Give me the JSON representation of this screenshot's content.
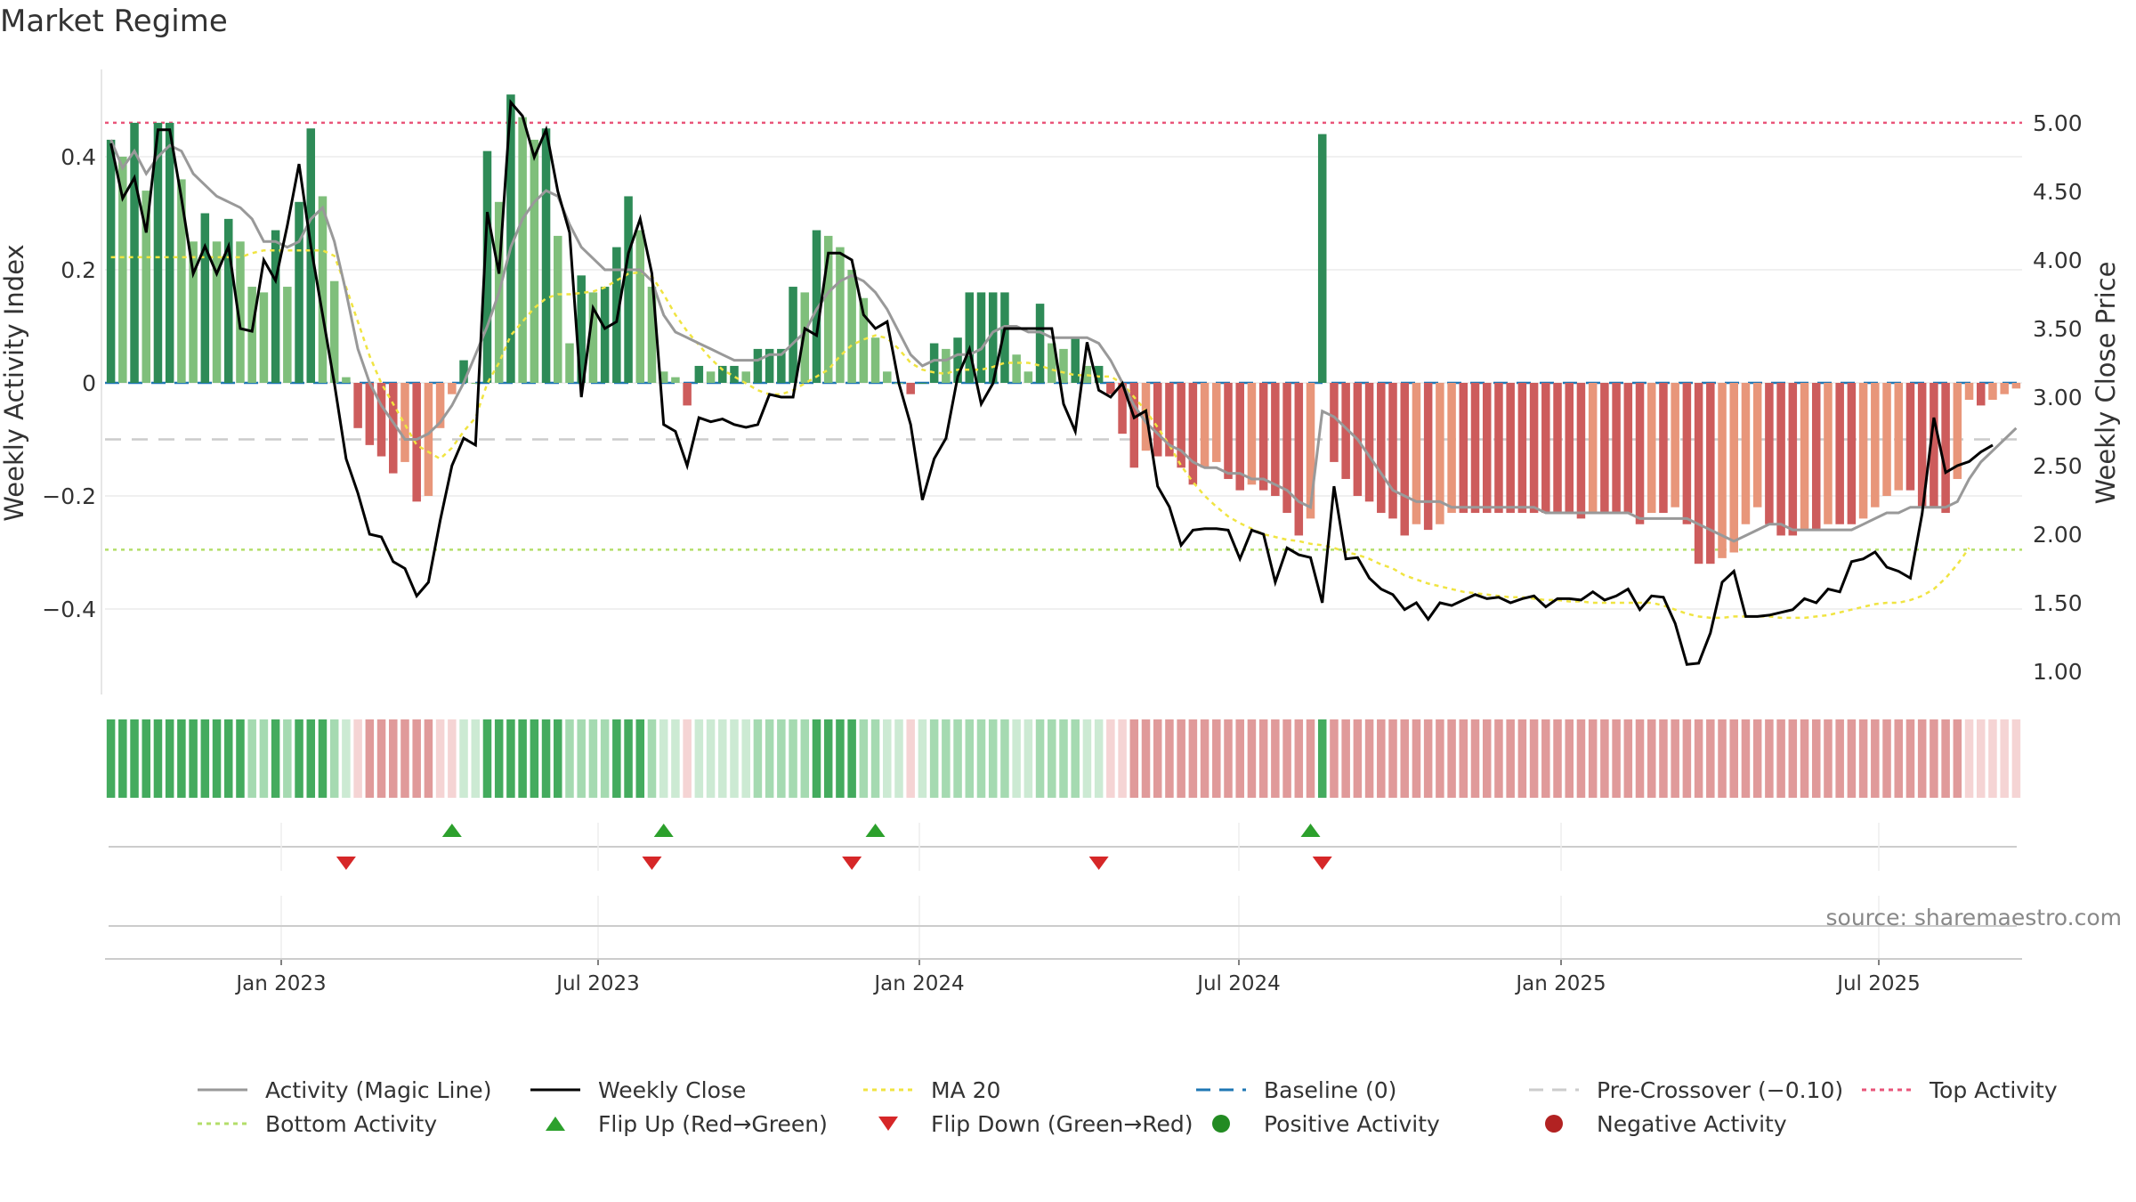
{
  "title": "Market Regime",
  "source": "source: sharemaestro.com",
  "chart_data": {
    "type": "bar",
    "ylabel_left": "Weekly Activity Index",
    "ylabel_right": "Weekly Close Price",
    "y_left_lim": [
      -0.55,
      0.55
    ],
    "y_right_lim": [
      0.85,
      5.35
    ],
    "y_left_ticks": [
      {
        "v": 0.4,
        "label": "0.4"
      },
      {
        "v": 0.2,
        "label": "0.2"
      },
      {
        "v": 0,
        "label": "0"
      },
      {
        "v": -0.2,
        "label": "−0.2"
      },
      {
        "v": -0.4,
        "label": "−0.4"
      }
    ],
    "y_right_ticks": [
      "1.00",
      "1.50",
      "2.00",
      "2.50",
      "3.00",
      "3.50",
      "4.00",
      "4.50",
      "5.00"
    ],
    "x_ticks": [
      "Jan 2023",
      "Jul 2023",
      "Jan 2024",
      "Jul 2024",
      "Jan 2025",
      "Jul 2025"
    ],
    "reference_lines": {
      "top_activity": 0.46,
      "bottom_activity": -0.295,
      "pre_crossover": -0.1,
      "baseline": 0
    },
    "activity_index": [
      0.43,
      0.4,
      0.46,
      0.34,
      0.46,
      0.46,
      0.36,
      0.25,
      0.3,
      0.25,
      0.29,
      0.25,
      0.17,
      0.16,
      0.27,
      0.17,
      0.32,
      0.45,
      0.33,
      0.18,
      0.01,
      -0.08,
      -0.11,
      -0.13,
      -0.16,
      -0.14,
      -0.21,
      -0.2,
      -0.08,
      -0.02,
      0.04,
      0.0,
      0.41,
      0.32,
      0.51,
      0.47,
      0.43,
      0.45,
      0.26,
      0.07,
      0.19,
      0.16,
      0.17,
      0.24,
      0.33,
      0.27,
      0.17,
      0.02,
      0.01,
      -0.04,
      0.03,
      0.02,
      0.03,
      0.03,
      0.02,
      0.06,
      0.06,
      0.06,
      0.17,
      0.16,
      0.27,
      0.26,
      0.24,
      0.2,
      0.15,
      0.08,
      0.02,
      0.0,
      -0.02,
      0.0,
      0.07,
      0.06,
      0.08,
      0.16,
      0.16,
      0.16,
      0.16,
      0.05,
      0.02,
      0.14,
      0.07,
      0.06,
      0.08,
      0.03,
      0.03,
      -0.02,
      -0.09,
      -0.15,
      -0.12,
      -0.13,
      -0.13,
      -0.15,
      -0.18,
      -0.15,
      -0.14,
      -0.17,
      -0.19,
      -0.18,
      -0.19,
      -0.2,
      -0.23,
      -0.27,
      -0.24,
      0.44,
      -0.14,
      -0.17,
      -0.2,
      -0.21,
      -0.23,
      -0.24,
      -0.27,
      -0.25,
      -0.26,
      -0.25,
      -0.23,
      -0.23,
      -0.23,
      -0.23,
      -0.23,
      -0.23,
      -0.23,
      -0.23,
      -0.23,
      -0.23,
      -0.23,
      -0.24,
      -0.23,
      -0.23,
      -0.23,
      -0.23,
      -0.25,
      -0.23,
      -0.23,
      -0.22,
      -0.25,
      -0.32,
      -0.32,
      -0.31,
      -0.3,
      -0.25,
      -0.22,
      -0.25,
      -0.27,
      -0.27,
      -0.26,
      -0.26,
      -0.25,
      -0.25,
      -0.25,
      -0.24,
      -0.22,
      -0.2,
      -0.19,
      -0.19,
      -0.22,
      -0.22,
      -0.23,
      -0.17,
      -0.03,
      -0.04,
      -0.03,
      -0.02,
      -0.01
    ],
    "weekly_close": [
      4.85,
      4.45,
      4.6,
      4.2,
      4.95,
      4.95,
      4.45,
      3.9,
      4.1,
      3.9,
      4.1,
      3.5,
      3.48,
      4.0,
      3.85,
      4.25,
      4.7,
      4.1,
      3.6,
      3.1,
      2.55,
      2.3,
      2.0,
      1.98,
      1.8,
      1.75,
      1.55,
      1.65,
      2.1,
      2.5,
      2.7,
      2.65,
      4.35,
      3.9,
      5.15,
      5.05,
      4.75,
      4.95,
      4.5,
      4.2,
      3.0,
      3.65,
      3.5,
      3.55,
      4.05,
      4.3,
      3.9,
      2.8,
      2.75,
      2.5,
      2.85,
      2.82,
      2.84,
      2.8,
      2.78,
      2.8,
      3.02,
      3.0,
      3.0,
      3.5,
      3.45,
      4.05,
      4.05,
      4.0,
      3.6,
      3.5,
      3.55,
      3.1,
      2.8,
      2.25,
      2.55,
      2.7,
      3.15,
      3.35,
      2.95,
      3.1,
      3.5,
      3.5,
      3.5,
      3.5,
      3.5,
      2.95,
      2.75,
      3.4,
      3.05,
      3.0,
      3.1,
      2.85,
      2.9,
      2.35,
      2.2,
      1.92,
      2.03,
      2.04,
      2.04,
      2.03,
      1.82,
      2.03,
      2.0,
      1.65,
      1.9,
      1.85,
      1.83,
      1.5,
      2.35,
      1.82,
      1.83,
      1.68,
      1.6,
      1.56,
      1.45,
      1.5,
      1.38,
      1.5,
      1.48,
      1.52,
      1.56,
      1.53,
      1.54,
      1.5,
      1.53,
      1.55,
      1.47,
      1.53,
      1.53,
      1.52,
      1.58,
      1.52,
      1.55,
      1.6,
      1.45,
      1.55,
      1.54,
      1.35,
      1.05,
      1.06,
      1.28,
      1.65,
      1.73,
      1.4,
      1.4,
      1.41,
      1.43,
      1.45,
      1.53,
      1.5,
      1.6,
      1.58,
      1.8,
      1.82,
      1.87,
      1.76,
      1.73,
      1.68,
      2.15,
      2.85,
      2.45,
      2.5,
      2.53,
      2.6,
      2.65
    ],
    "activity_magic_line": [
      0.43,
      0.38,
      0.41,
      0.37,
      0.4,
      0.42,
      0.41,
      0.37,
      0.35,
      0.33,
      0.32,
      0.31,
      0.29,
      0.25,
      0.25,
      0.24,
      0.25,
      0.29,
      0.31,
      0.25,
      0.16,
      0.06,
      0.0,
      -0.04,
      -0.07,
      -0.1,
      -0.1,
      -0.09,
      -0.07,
      -0.04,
      0.0,
      0.05,
      0.1,
      0.16,
      0.24,
      0.29,
      0.32,
      0.34,
      0.33,
      0.28,
      0.24,
      0.22,
      0.2,
      0.2,
      0.2,
      0.2,
      0.18,
      0.12,
      0.09,
      0.08,
      0.07,
      0.06,
      0.05,
      0.04,
      0.04,
      0.04,
      0.05,
      0.05,
      0.07,
      0.09,
      0.13,
      0.16,
      0.18,
      0.19,
      0.18,
      0.16,
      0.13,
      0.09,
      0.05,
      0.03,
      0.04,
      0.04,
      0.05,
      0.05,
      0.06,
      0.09,
      0.1,
      0.1,
      0.09,
      0.09,
      0.08,
      0.08,
      0.08,
      0.08,
      0.07,
      0.04,
      0.0,
      -0.04,
      -0.07,
      -0.09,
      -0.11,
      -0.12,
      -0.14,
      -0.15,
      -0.15,
      -0.16,
      -0.16,
      -0.17,
      -0.17,
      -0.18,
      -0.19,
      -0.21,
      -0.22,
      -0.05,
      -0.06,
      -0.08,
      -0.1,
      -0.13,
      -0.16,
      -0.19,
      -0.2,
      -0.21,
      -0.21,
      -0.21,
      -0.22,
      -0.22,
      -0.22,
      -0.22,
      -0.22,
      -0.22,
      -0.22,
      -0.22,
      -0.23,
      -0.23,
      -0.23,
      -0.23,
      -0.23,
      -0.23,
      -0.23,
      -0.23,
      -0.24,
      -0.24,
      -0.24,
      -0.24,
      -0.24,
      -0.25,
      -0.26,
      -0.27,
      -0.28,
      -0.27,
      -0.26,
      -0.25,
      -0.25,
      -0.26,
      -0.26,
      -0.26,
      -0.26,
      -0.26,
      -0.26,
      -0.25,
      -0.24,
      -0.23,
      -0.23,
      -0.22,
      -0.22,
      -0.22,
      -0.22,
      -0.21,
      -0.17,
      -0.14,
      -0.12,
      -0.1,
      -0.08
    ],
    "ma_20": [
      4.02,
      4.02,
      4.02,
      4.02,
      4.02,
      4.02,
      4.02,
      4.02,
      4.02,
      4.02,
      4.02,
      4.02,
      4.05,
      4.07,
      4.07,
      4.07,
      4.07,
      4.07,
      4.07,
      4.03,
      3.8,
      3.55,
      3.3,
      3.1,
      2.95,
      2.8,
      2.65,
      2.6,
      2.55,
      2.63,
      2.75,
      2.85,
      3.1,
      3.25,
      3.45,
      3.55,
      3.65,
      3.72,
      3.75,
      3.75,
      3.76,
      3.77,
      3.8,
      3.85,
      3.9,
      3.91,
      3.88,
      3.75,
      3.6,
      3.48,
      3.38,
      3.28,
      3.2,
      3.15,
      3.1,
      3.05,
      3.02,
      3.02,
      3.05,
      3.1,
      3.15,
      3.2,
      3.3,
      3.38,
      3.42,
      3.45,
      3.43,
      3.35,
      3.25,
      3.2,
      3.18,
      3.17,
      3.2,
      3.2,
      3.2,
      3.22,
      3.25,
      3.25,
      3.25,
      3.23,
      3.2,
      3.18,
      3.16,
      3.16,
      3.15,
      3.15,
      3.1,
      3.0,
      2.9,
      2.78,
      2.65,
      2.5,
      2.38,
      2.28,
      2.2,
      2.13,
      2.08,
      2.04,
      2.0,
      1.98,
      1.96,
      1.95,
      1.93,
      1.92,
      1.9,
      1.87,
      1.85,
      1.82,
      1.78,
      1.75,
      1.7,
      1.67,
      1.64,
      1.62,
      1.6,
      1.58,
      1.57,
      1.56,
      1.55,
      1.54,
      1.54,
      1.53,
      1.52,
      1.52,
      1.51,
      1.51,
      1.5,
      1.5,
      1.5,
      1.5,
      1.5,
      1.5,
      1.48,
      1.45,
      1.42,
      1.4,
      1.39,
      1.39,
      1.4,
      1.4,
      1.4,
      1.4,
      1.39,
      1.39,
      1.39,
      1.4,
      1.41,
      1.43,
      1.45,
      1.47,
      1.49,
      1.5,
      1.5,
      1.52,
      1.55,
      1.6,
      1.68,
      1.78,
      1.9
    ],
    "flip_up_weeks": [
      29,
      47,
      65,
      102
    ],
    "flip_down_weeks": [
      20,
      46,
      63,
      84,
      103
    ],
    "legend": [
      "Activity (Magic Line)",
      "Weekly Close",
      "MA 20",
      "Baseline (0)",
      "Pre-Crossover (−0.10)",
      "Top Activity",
      "Bottom Activity",
      "Flip Up (Red→Green)",
      "Flip Down (Green→Red)",
      "Positive Activity",
      "Negative Activity"
    ],
    "colors": {
      "strong_green": "#2e8b57",
      "light_green": "#7fbf7b",
      "strong_red": "#cd5c5c",
      "light_red": "#e8967a",
      "close_line": "#000000",
      "magic_line": "#999999",
      "ma20": "#f0e442",
      "baseline": "#1f77b4",
      "pre_crossover": "#cccccc",
      "top_activity": "#e9557a",
      "bottom_activity": "#b3de69",
      "flip_up": "#2ca02c",
      "flip_down": "#d62728",
      "positive_dot": "#228b22",
      "negative_dot": "#b22222"
    }
  }
}
